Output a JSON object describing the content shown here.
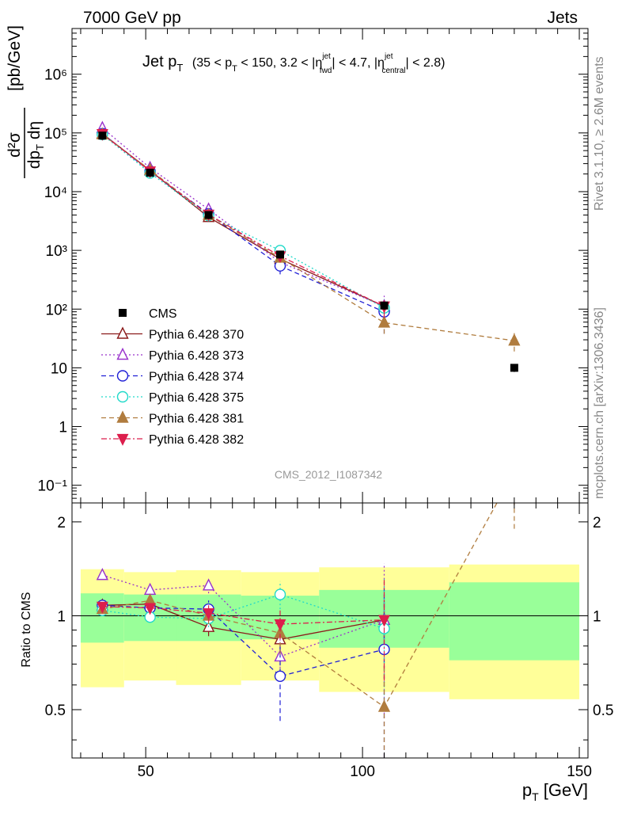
{
  "header": {
    "left": "7000 GeV pp",
    "right": "Jets"
  },
  "plot_title": {
    "main": "Jet p",
    "main_sub": "T",
    "cut_text": "(35 < p",
    "cut_sub1": "T",
    "cut_text2": " < 150, 3.2 < |η",
    "cut_sup1": "jet",
    "cut_sub2": "fwd",
    "cut_text3": "| < 4.7, |η",
    "cut_sup2": "jet",
    "cut_sub3": "central",
    "cut_text4": "| < 2.8)"
  },
  "side_labels": {
    "rivet": "Rivet 3.1.10, ≥ 2.6M events",
    "mcplots": "mcplots.cern.ch [arXiv:1306.3436]"
  },
  "watermark": "CMS_2012_I1087342",
  "y_axis_label": {
    "numerator": "d²σ",
    "denominator": "dp",
    "den_sub": "T",
    "den_tail": " dη",
    "unit": "[pb/GeV]"
  },
  "ratio_axis_label": "Ratio to CMS",
  "x_axis_label": {
    "main": "p",
    "sub": "T",
    "unit": " [GeV]"
  },
  "colors": {
    "cms": "#000000",
    "p370": "#8b1a1a",
    "p373": "#9932cc",
    "p374": "#1f1fd6",
    "p375": "#20d9c9",
    "p381": "#b07c3e",
    "p382": "#dc1e4c",
    "band_outer": "#ffff99",
    "band_inner": "#99ff99"
  },
  "chart_data": {
    "type": "line",
    "x_scale": "linear",
    "y_scale": "log",
    "xlim": [
      33,
      152
    ],
    "ylim_main": [
      0.05,
      6000000
    ],
    "ylim_ratio": [
      0.35,
      2.3
    ],
    "x_ticks": [
      50,
      100,
      150
    ],
    "y_ticks_main": [
      "10⁻¹",
      "1",
      "10",
      "10²",
      "10³",
      "10⁴",
      "10⁵",
      "10⁶"
    ],
    "y_ticks_ratio": [
      "0.5",
      "1",
      "2"
    ],
    "bins": [
      [
        35,
        45
      ],
      [
        45,
        57
      ],
      [
        57,
        72
      ],
      [
        72,
        90
      ],
      [
        90,
        120
      ],
      [
        120,
        150
      ]
    ],
    "cms": {
      "name": "CMS",
      "x": [
        40,
        51,
        64.5,
        81,
        105,
        135
      ],
      "y": [
        90000,
        21000,
        4000,
        850,
        115,
        10
      ],
      "band_inner_rel": [
        0.18,
        0.17,
        0.17,
        0.16,
        0.21,
        0.28
      ],
      "band_outer_rel": [
        0.41,
        0.38,
        0.4,
        0.38,
        0.43,
        0.46
      ]
    },
    "series": [
      {
        "name": "Pythia 6.428 370",
        "key": "p370",
        "marker": "triangle-open",
        "dash": "solid",
        "x": [
          40,
          51,
          64.5,
          81,
          105
        ],
        "ratio": [
          1.08,
          1.09,
          0.92,
          0.84,
          0.97
        ],
        "ratio_err": [
          0.03,
          0.03,
          0.06,
          0.08,
          0.15
        ]
      },
      {
        "name": "Pythia 6.428 373",
        "key": "p373",
        "marker": "triangle-open",
        "dash": "dotted",
        "x": [
          40,
          51,
          64.5,
          81,
          105
        ],
        "ratio": [
          1.35,
          1.21,
          1.25,
          0.74,
          0.97
        ],
        "ratio_err": [
          0.03,
          0.03,
          0.07,
          0.1,
          0.5
        ]
      },
      {
        "name": "Pythia 6.428 374",
        "key": "p374",
        "marker": "circle-open",
        "dash": "dashed",
        "x": [
          40,
          51,
          64.5,
          81,
          105
        ],
        "ratio": [
          1.08,
          1.06,
          1.05,
          0.64,
          0.78
        ],
        "ratio_err": [
          0.03,
          0.03,
          0.07,
          0.18,
          0.45
        ]
      },
      {
        "name": "Pythia 6.428 375",
        "key": "p375",
        "marker": "circle-open",
        "dash": "dotted",
        "x": [
          40,
          51,
          64.5,
          81,
          105
        ],
        "ratio": [
          1.04,
          0.99,
          0.98,
          1.17,
          0.91
        ],
        "ratio_err": [
          0.03,
          0.03,
          0.06,
          0.12,
          0.4
        ]
      },
      {
        "name": "Pythia 6.428 381",
        "key": "p381",
        "marker": "triangle-filled",
        "dash": "dashed",
        "x": [
          40,
          51,
          64.5,
          81,
          105,
          135
        ],
        "ratio": [
          1.05,
          1.12,
          1.0,
          0.88,
          0.51,
          2.9
        ],
        "ratio_err": [
          0.03,
          0.03,
          0.06,
          0.13,
          0.18,
          1.0
        ]
      },
      {
        "name": "Pythia 6.428 382",
        "key": "p382",
        "marker": "triangle-down-filled",
        "dash": "dashdot",
        "x": [
          40,
          51,
          64.5,
          81,
          105
        ],
        "ratio": [
          1.07,
          1.06,
          1.02,
          0.94,
          0.97
        ],
        "ratio_err": [
          0.03,
          0.03,
          0.06,
          0.1,
          0.35
        ]
      }
    ]
  }
}
